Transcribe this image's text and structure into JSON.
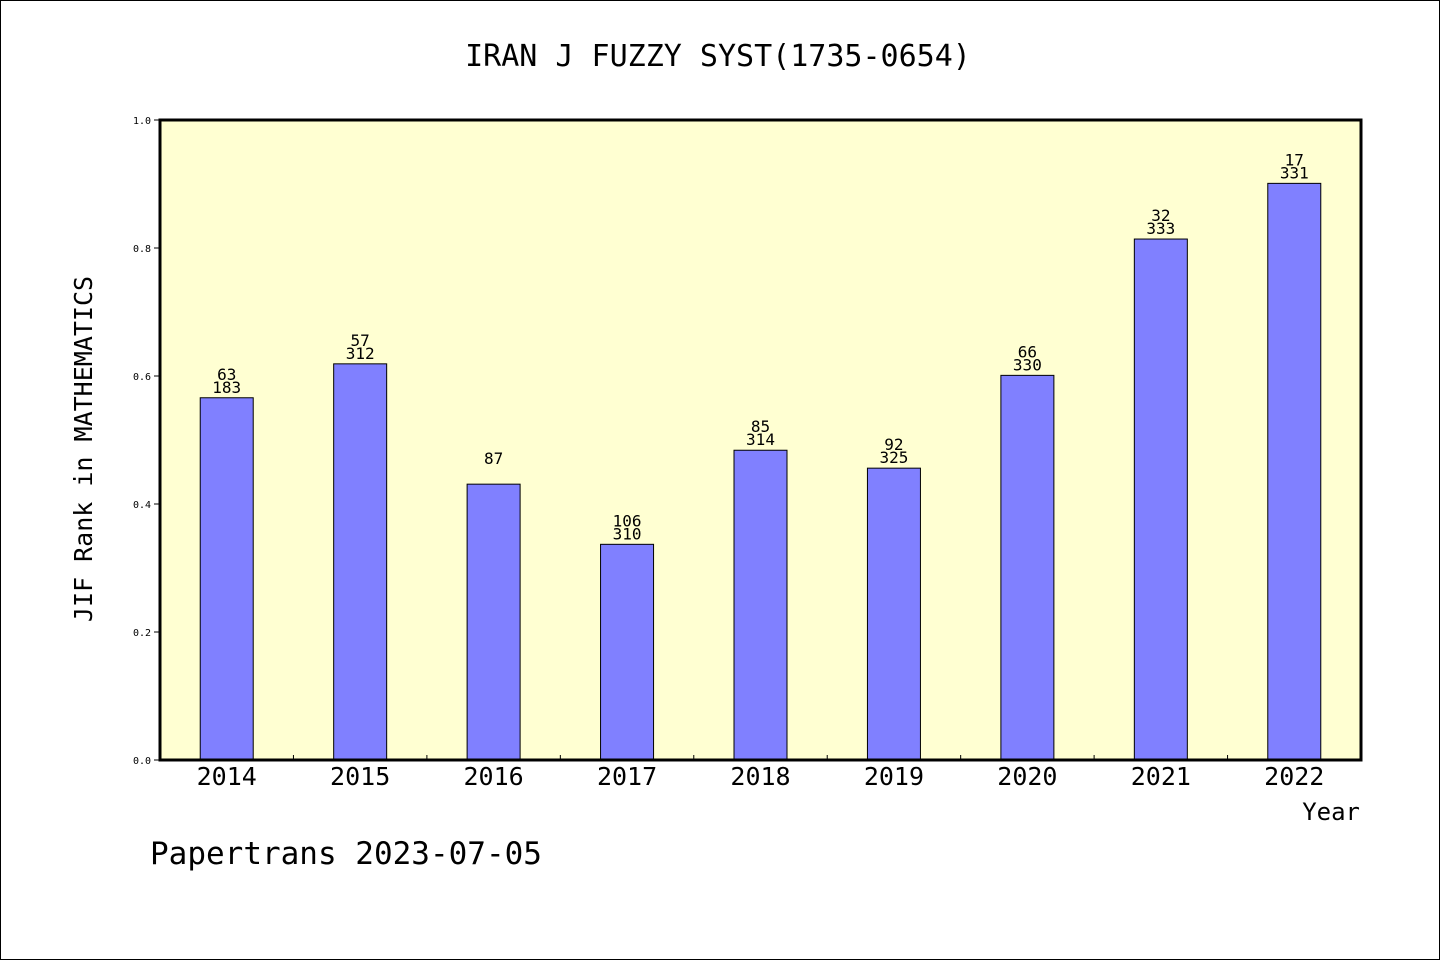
{
  "chart_data": {
    "type": "bar",
    "title": "IRAN J FUZZY SYST(1735-0654)",
    "xlabel": "Year",
    "ylabel": "JIF Rank in MATHEMATICS",
    "ylim": [
      0,
      1.0
    ],
    "yticks": [
      "0.0",
      "0.2",
      "0.4",
      "0.6",
      "0.8",
      "1.0"
    ],
    "categories": [
      "2014",
      "2015",
      "2016",
      "2017",
      "2018",
      "2019",
      "2020",
      "2021",
      "2022"
    ],
    "values": [
      0.566,
      0.619,
      0.431,
      0.337,
      0.484,
      0.456,
      0.601,
      0.814,
      0.901
    ],
    "labels": [
      [
        "63",
        "183"
      ],
      [
        "57",
        "312"
      ],
      [
        "87"
      ],
      [
        "106",
        "310"
      ],
      [
        "85",
        "314"
      ],
      [
        "92",
        "325"
      ],
      [
        "66",
        "330"
      ],
      [
        "32",
        "333"
      ],
      [
        "17",
        "331"
      ]
    ],
    "plot_background": "#ffffd2",
    "bar_color": "#8080ff",
    "grid": false
  },
  "footer": "Papertrans 2023-07-05"
}
